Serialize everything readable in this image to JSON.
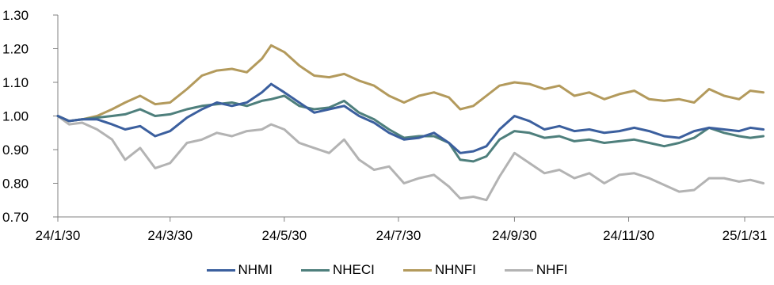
{
  "chart_data": {
    "type": "line",
    "title": "",
    "xlabel": "",
    "ylabel": "",
    "ylim": [
      0.7,
      1.3
    ],
    "y_ticks": [
      "0.70",
      "0.80",
      "0.90",
      "1.00",
      "1.10",
      "1.20",
      "1.30"
    ],
    "x_ticks": [
      "24/1/30",
      "24/3/30",
      "24/5/30",
      "24/7/30",
      "24/9/30",
      "24/11/30",
      "25/1/31"
    ],
    "x_domain": [
      "2024-01-30",
      "2025-02-10"
    ],
    "grid": false,
    "legend_position": "bottom",
    "series": [
      {
        "name": "NHMI",
        "color": "#3b5f9e",
        "points": [
          [
            "2024-01-30",
            1.0
          ],
          [
            "2024-02-05",
            0.985
          ],
          [
            "2024-02-12",
            0.99
          ],
          [
            "2024-02-20",
            0.99
          ],
          [
            "2024-02-28",
            0.975
          ],
          [
            "2024-03-06",
            0.96
          ],
          [
            "2024-03-14",
            0.97
          ],
          [
            "2024-03-22",
            0.94
          ],
          [
            "2024-03-30",
            0.955
          ],
          [
            "2024-04-08",
            0.995
          ],
          [
            "2024-04-16",
            1.02
          ],
          [
            "2024-04-24",
            1.04
          ],
          [
            "2024-05-02",
            1.03
          ],
          [
            "2024-05-10",
            1.04
          ],
          [
            "2024-05-18",
            1.07
          ],
          [
            "2024-05-23",
            1.095
          ],
          [
            "2024-05-30",
            1.07
          ],
          [
            "2024-06-07",
            1.04
          ],
          [
            "2024-06-15",
            1.01
          ],
          [
            "2024-06-23",
            1.02
          ],
          [
            "2024-07-01",
            1.03
          ],
          [
            "2024-07-09",
            1.0
          ],
          [
            "2024-07-17",
            0.98
          ],
          [
            "2024-07-25",
            0.95
          ],
          [
            "2024-08-02",
            0.93
          ],
          [
            "2024-08-10",
            0.935
          ],
          [
            "2024-08-18",
            0.95
          ],
          [
            "2024-08-26",
            0.92
          ],
          [
            "2024-09-01",
            0.89
          ],
          [
            "2024-09-08",
            0.895
          ],
          [
            "2024-09-15",
            0.91
          ],
          [
            "2024-09-22",
            0.96
          ],
          [
            "2024-09-30",
            1.0
          ],
          [
            "2024-10-08",
            0.985
          ],
          [
            "2024-10-16",
            0.96
          ],
          [
            "2024-10-24",
            0.97
          ],
          [
            "2024-11-01",
            0.955
          ],
          [
            "2024-11-09",
            0.96
          ],
          [
            "2024-11-17",
            0.95
          ],
          [
            "2024-11-25",
            0.955
          ],
          [
            "2024-12-03",
            0.965
          ],
          [
            "2024-12-11",
            0.955
          ],
          [
            "2024-12-19",
            0.94
          ],
          [
            "2024-12-27",
            0.935
          ],
          [
            "2025-01-04",
            0.955
          ],
          [
            "2025-01-12",
            0.965
          ],
          [
            "2025-01-20",
            0.96
          ],
          [
            "2025-01-28",
            0.955
          ],
          [
            "2025-02-03",
            0.965
          ],
          [
            "2025-02-10",
            0.96
          ]
        ]
      },
      {
        "name": "NHECI",
        "color": "#4e7f7c",
        "points": [
          [
            "2024-01-30",
            1.0
          ],
          [
            "2024-02-05",
            0.985
          ],
          [
            "2024-02-12",
            0.99
          ],
          [
            "2024-02-20",
            0.995
          ],
          [
            "2024-02-28",
            1.0
          ],
          [
            "2024-03-06",
            1.005
          ],
          [
            "2024-03-14",
            1.02
          ],
          [
            "2024-03-22",
            1.0
          ],
          [
            "2024-03-30",
            1.005
          ],
          [
            "2024-04-08",
            1.02
          ],
          [
            "2024-04-16",
            1.03
          ],
          [
            "2024-04-24",
            1.035
          ],
          [
            "2024-05-02",
            1.04
          ],
          [
            "2024-05-10",
            1.03
          ],
          [
            "2024-05-18",
            1.045
          ],
          [
            "2024-05-23",
            1.05
          ],
          [
            "2024-05-30",
            1.06
          ],
          [
            "2024-06-07",
            1.03
          ],
          [
            "2024-06-15",
            1.02
          ],
          [
            "2024-06-23",
            1.025
          ],
          [
            "2024-07-01",
            1.045
          ],
          [
            "2024-07-09",
            1.01
          ],
          [
            "2024-07-17",
            0.99
          ],
          [
            "2024-07-25",
            0.96
          ],
          [
            "2024-08-02",
            0.935
          ],
          [
            "2024-08-10",
            0.94
          ],
          [
            "2024-08-18",
            0.94
          ],
          [
            "2024-08-26",
            0.92
          ],
          [
            "2024-09-01",
            0.87
          ],
          [
            "2024-09-08",
            0.865
          ],
          [
            "2024-09-15",
            0.88
          ],
          [
            "2024-09-22",
            0.93
          ],
          [
            "2024-09-30",
            0.955
          ],
          [
            "2024-10-08",
            0.95
          ],
          [
            "2024-10-16",
            0.935
          ],
          [
            "2024-10-24",
            0.94
          ],
          [
            "2024-11-01",
            0.925
          ],
          [
            "2024-11-09",
            0.93
          ],
          [
            "2024-11-17",
            0.92
          ],
          [
            "2024-11-25",
            0.925
          ],
          [
            "2024-12-03",
            0.93
          ],
          [
            "2024-12-11",
            0.92
          ],
          [
            "2024-12-19",
            0.91
          ],
          [
            "2024-12-27",
            0.92
          ],
          [
            "2025-01-04",
            0.935
          ],
          [
            "2025-01-12",
            0.965
          ],
          [
            "2025-01-20",
            0.95
          ],
          [
            "2025-01-28",
            0.94
          ],
          [
            "2025-02-03",
            0.935
          ],
          [
            "2025-02-10",
            0.94
          ]
        ]
      },
      {
        "name": "NHNFI",
        "color": "#b39a5c",
        "points": [
          [
            "2024-01-30",
            1.0
          ],
          [
            "2024-02-05",
            0.985
          ],
          [
            "2024-02-12",
            0.99
          ],
          [
            "2024-02-20",
            1.0
          ],
          [
            "2024-02-28",
            1.02
          ],
          [
            "2024-03-06",
            1.04
          ],
          [
            "2024-03-14",
            1.06
          ],
          [
            "2024-03-22",
            1.035
          ],
          [
            "2024-03-30",
            1.04
          ],
          [
            "2024-04-08",
            1.08
          ],
          [
            "2024-04-16",
            1.12
          ],
          [
            "2024-04-24",
            1.135
          ],
          [
            "2024-05-02",
            1.14
          ],
          [
            "2024-05-10",
            1.13
          ],
          [
            "2024-05-18",
            1.17
          ],
          [
            "2024-05-23",
            1.21
          ],
          [
            "2024-05-30",
            1.19
          ],
          [
            "2024-06-07",
            1.15
          ],
          [
            "2024-06-15",
            1.12
          ],
          [
            "2024-06-23",
            1.115
          ],
          [
            "2024-07-01",
            1.125
          ],
          [
            "2024-07-09",
            1.105
          ],
          [
            "2024-07-17",
            1.09
          ],
          [
            "2024-07-25",
            1.06
          ],
          [
            "2024-08-02",
            1.04
          ],
          [
            "2024-08-10",
            1.06
          ],
          [
            "2024-08-18",
            1.07
          ],
          [
            "2024-08-26",
            1.055
          ],
          [
            "2024-09-01",
            1.02
          ],
          [
            "2024-09-08",
            1.03
          ],
          [
            "2024-09-15",
            1.06
          ],
          [
            "2024-09-22",
            1.09
          ],
          [
            "2024-09-30",
            1.1
          ],
          [
            "2024-10-08",
            1.095
          ],
          [
            "2024-10-16",
            1.08
          ],
          [
            "2024-10-24",
            1.09
          ],
          [
            "2024-11-01",
            1.06
          ],
          [
            "2024-11-09",
            1.07
          ],
          [
            "2024-11-17",
            1.05
          ],
          [
            "2024-11-25",
            1.065
          ],
          [
            "2024-12-03",
            1.075
          ],
          [
            "2024-12-11",
            1.05
          ],
          [
            "2024-12-19",
            1.045
          ],
          [
            "2024-12-27",
            1.05
          ],
          [
            "2025-01-04",
            1.04
          ],
          [
            "2025-01-12",
            1.08
          ],
          [
            "2025-01-20",
            1.06
          ],
          [
            "2025-01-28",
            1.05
          ],
          [
            "2025-02-03",
            1.075
          ],
          [
            "2025-02-10",
            1.07
          ]
        ]
      },
      {
        "name": "NHFI",
        "color": "#b3b3b3",
        "points": [
          [
            "2024-01-30",
            1.0
          ],
          [
            "2024-02-05",
            0.975
          ],
          [
            "2024-02-12",
            0.98
          ],
          [
            "2024-02-20",
            0.96
          ],
          [
            "2024-02-28",
            0.93
          ],
          [
            "2024-03-06",
            0.87
          ],
          [
            "2024-03-14",
            0.905
          ],
          [
            "2024-03-22",
            0.845
          ],
          [
            "2024-03-30",
            0.86
          ],
          [
            "2024-04-08",
            0.92
          ],
          [
            "2024-04-16",
            0.93
          ],
          [
            "2024-04-24",
            0.95
          ],
          [
            "2024-05-02",
            0.94
          ],
          [
            "2024-05-10",
            0.955
          ],
          [
            "2024-05-18",
            0.96
          ],
          [
            "2024-05-23",
            0.975
          ],
          [
            "2024-05-30",
            0.96
          ],
          [
            "2024-06-07",
            0.92
          ],
          [
            "2024-06-15",
            0.905
          ],
          [
            "2024-06-23",
            0.89
          ],
          [
            "2024-07-01",
            0.93
          ],
          [
            "2024-07-09",
            0.87
          ],
          [
            "2024-07-17",
            0.84
          ],
          [
            "2024-07-25",
            0.85
          ],
          [
            "2024-08-02",
            0.8
          ],
          [
            "2024-08-10",
            0.815
          ],
          [
            "2024-08-18",
            0.825
          ],
          [
            "2024-08-26",
            0.79
          ],
          [
            "2024-09-01",
            0.755
          ],
          [
            "2024-09-08",
            0.76
          ],
          [
            "2024-09-15",
            0.75
          ],
          [
            "2024-09-22",
            0.82
          ],
          [
            "2024-09-30",
            0.89
          ],
          [
            "2024-10-08",
            0.86
          ],
          [
            "2024-10-16",
            0.83
          ],
          [
            "2024-10-24",
            0.84
          ],
          [
            "2024-11-01",
            0.815
          ],
          [
            "2024-11-09",
            0.83
          ],
          [
            "2024-11-17",
            0.8
          ],
          [
            "2024-11-25",
            0.825
          ],
          [
            "2024-12-03",
            0.83
          ],
          [
            "2024-12-11",
            0.815
          ],
          [
            "2024-12-19",
            0.795
          ],
          [
            "2024-12-27",
            0.775
          ],
          [
            "2025-01-04",
            0.78
          ],
          [
            "2025-01-12",
            0.815
          ],
          [
            "2025-01-20",
            0.815
          ],
          [
            "2025-01-28",
            0.805
          ],
          [
            "2025-02-03",
            0.81
          ],
          [
            "2025-02-10",
            0.8
          ]
        ]
      }
    ]
  }
}
